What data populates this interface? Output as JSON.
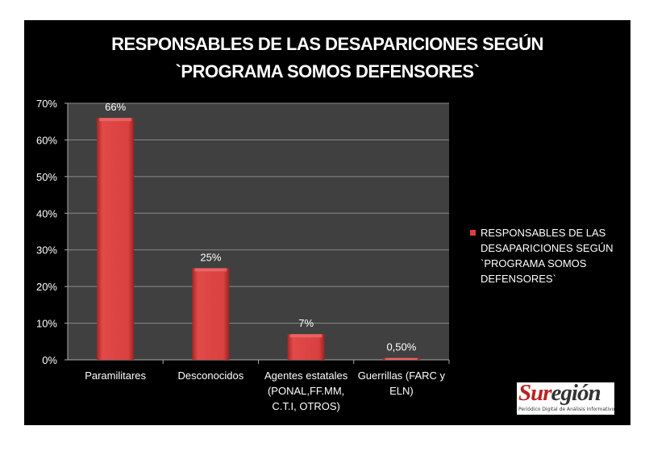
{
  "chart_data": {
    "type": "bar",
    "title": "RESPONSABLES DE LAS DESAPARICIONES SEGÚN `PROGRAMA SOMOS DEFENSORES`",
    "title_lines": [
      "RESPONSABLES DE LAS DESAPARICIONES SEGÚN",
      "`PROGRAMA SOMOS DEFENSORES`"
    ],
    "categories": [
      [
        "Paramilitares"
      ],
      [
        "Desconocidos"
      ],
      [
        "Agentes estatales",
        "(PONAL,FF.MM,",
        "C.T.I, OTROS)"
      ],
      [
        "Guerrillas (FARC y",
        "ELN)"
      ]
    ],
    "series": [
      {
        "name": "RESPONSABLES DE LAS DESAPARICIONES SEGÚN `PROGRAMA SOMOS DEFENSORES`",
        "values": [
          66,
          25,
          7,
          0.5
        ]
      }
    ],
    "data_labels": [
      "66%",
      "25%",
      "7%",
      "0,50%"
    ],
    "yticks": [
      "0%",
      "10%",
      "20%",
      "30%",
      "40%",
      "50%",
      "60%",
      "70%"
    ],
    "ylim": [
      0,
      70
    ],
    "grid": true,
    "legend": "right",
    "legend_lines": [
      "RESPONSABLES DE LAS",
      "DESAPARICIONES SEGÚN",
      "`PROGRAMA SOMOS",
      "DEFENSORES`"
    ],
    "colors": {
      "bar": "#d9403f",
      "plot_bg": "#404040",
      "background": "#000000",
      "grid": "#8a8a8a"
    }
  },
  "logo": {
    "name_a": "Sur",
    "name_b": "egión",
    "tagline": "Periódico Digital de Análisis Informativo"
  }
}
